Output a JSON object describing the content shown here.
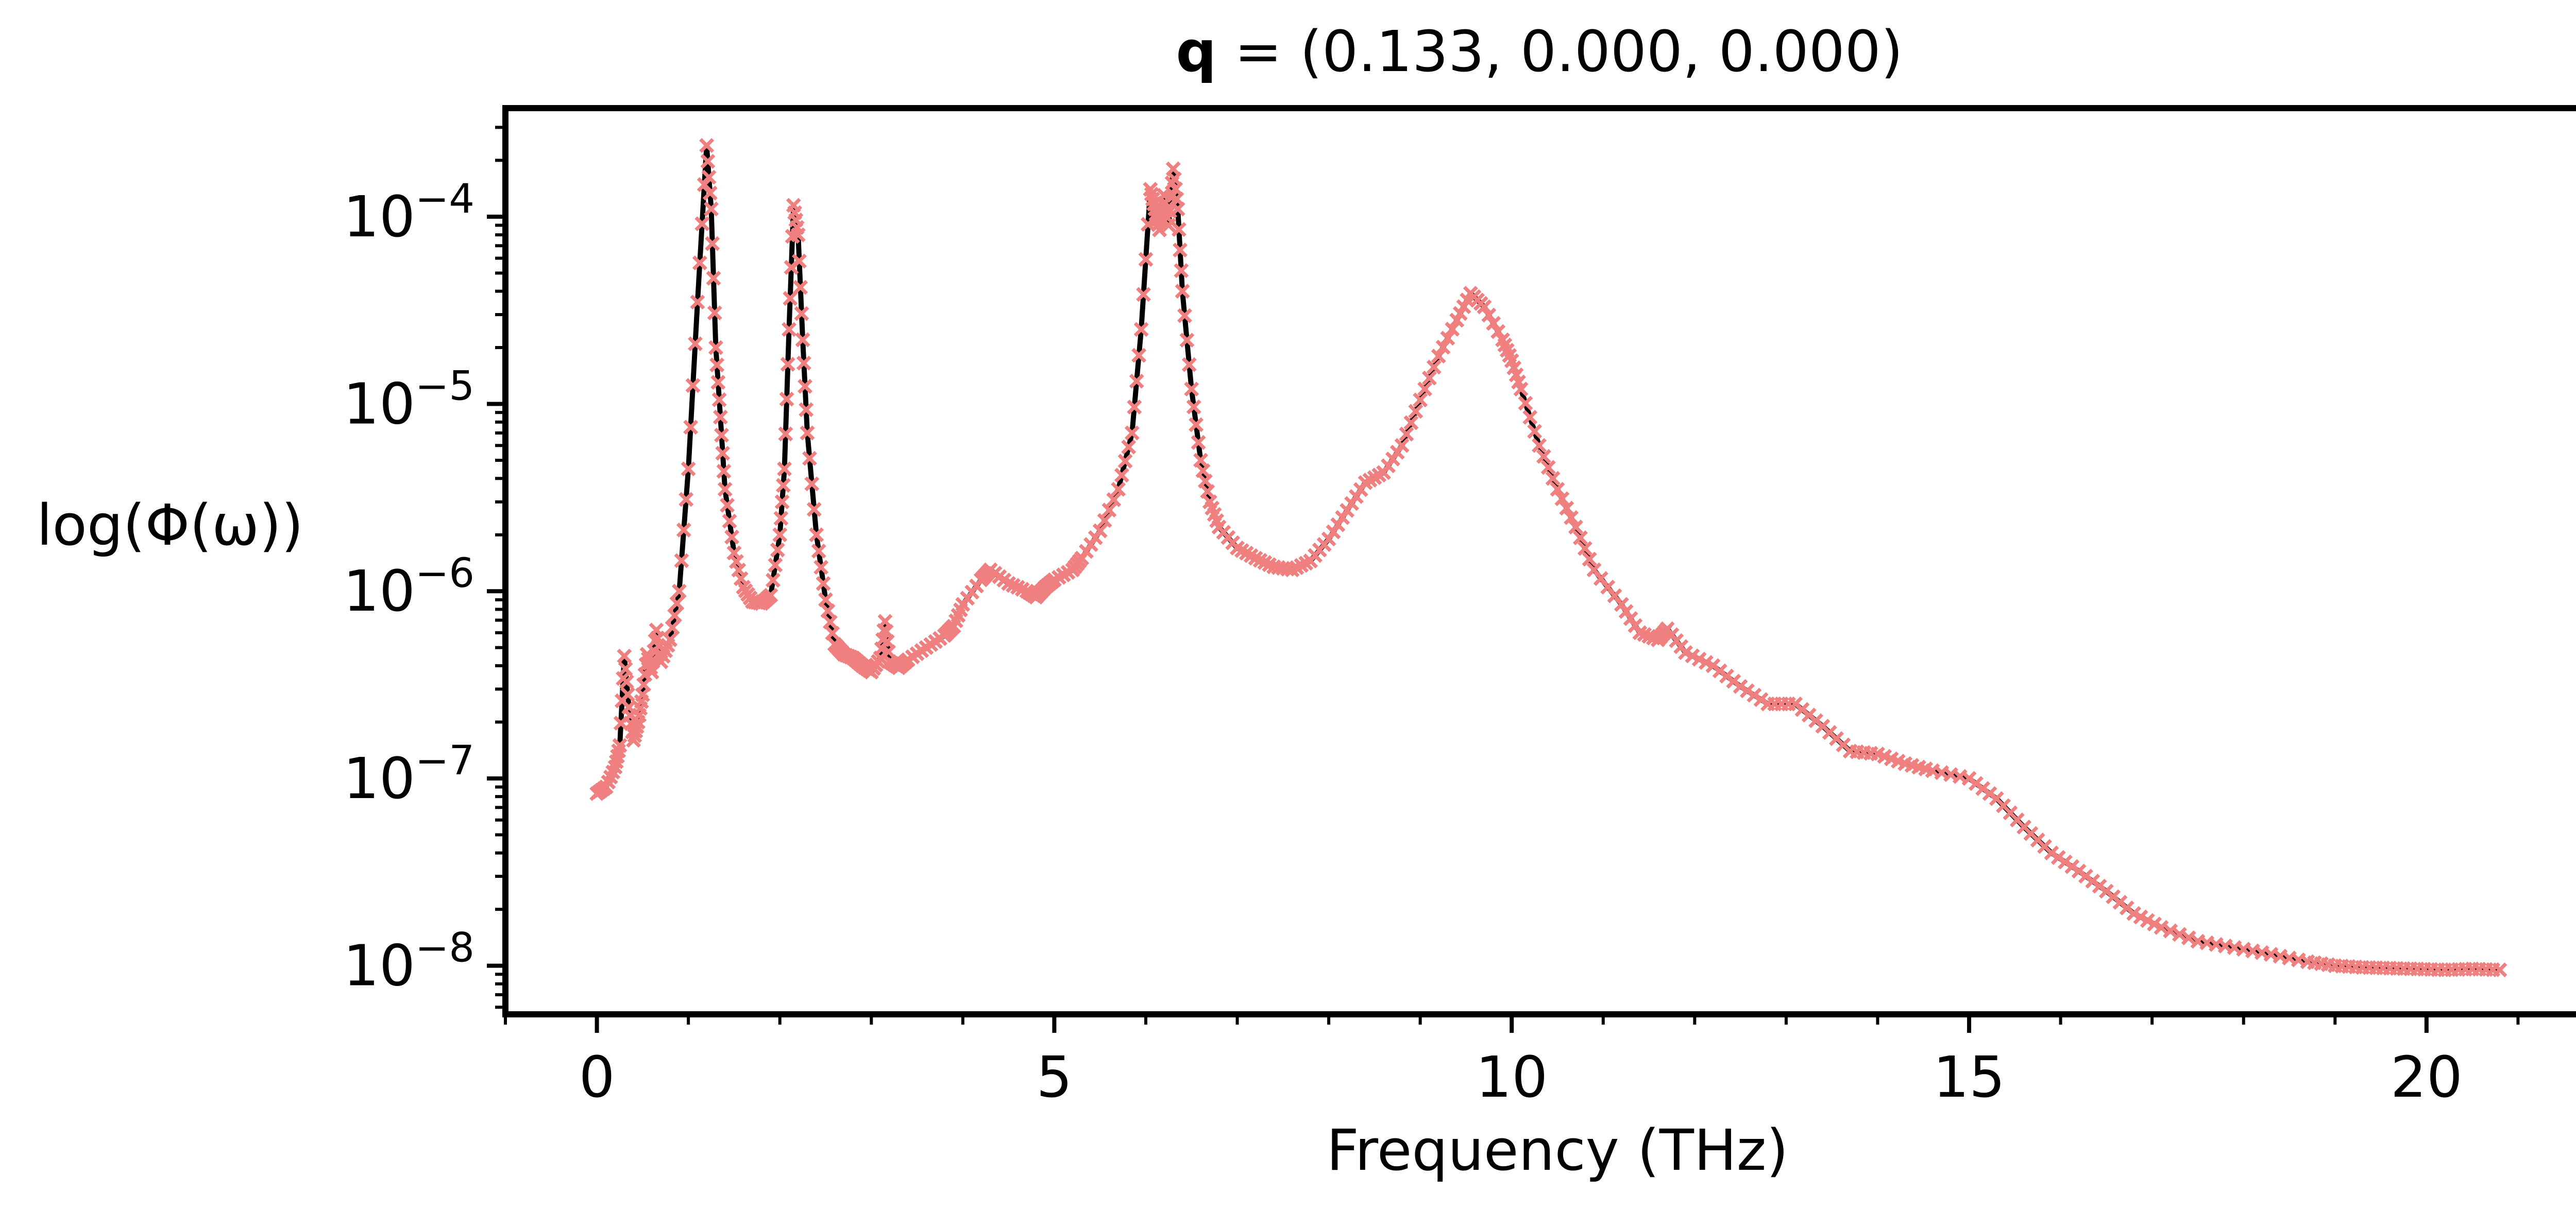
{
  "chart_data": {
    "type": "line",
    "title": {
      "bold_part": "q",
      "rest": " = (0.133, 0.000, 0.000)"
    },
    "xlabel": "Frequency (THz)",
    "ylabel": "log(Φ(ω))",
    "xlim": [
      -1.0,
      22.0
    ],
    "ylim": [
      5.5e-09,
      0.00038
    ],
    "yscale": "log",
    "grid": false,
    "legend": "none",
    "x_ticks": [
      {
        "value": 0,
        "label": "0"
      },
      {
        "value": 5,
        "label": "5"
      },
      {
        "value": 10,
        "label": "10"
      },
      {
        "value": 15,
        "label": "15"
      },
      {
        "value": 20,
        "label": "20"
      }
    ],
    "y_ticks": [
      {
        "value": 1e-08,
        "base": "10",
        "exp": "−8"
      },
      {
        "value": 1e-07,
        "base": "10",
        "exp": "−7"
      },
      {
        "value": 1e-06,
        "base": "10",
        "exp": "−6"
      },
      {
        "value": 1e-05,
        "base": "10",
        "exp": "−5"
      },
      {
        "value": 0.0001,
        "base": "10",
        "exp": "−4"
      }
    ],
    "line_color": "#000000",
    "marker_color": "#f08080",
    "marker": "x",
    "series": [
      {
        "points": [
          [
            0.0,
            8.3e-08
          ],
          [
            0.1,
            9e-08
          ],
          [
            0.2,
            1.15e-07
          ],
          [
            0.25,
            1.5e-07
          ],
          [
            0.3,
            4.5e-07
          ],
          [
            0.35,
            2.4e-07
          ],
          [
            0.4,
            1.6e-07
          ],
          [
            0.45,
            2e-07
          ],
          [
            0.5,
            2.8e-07
          ],
          [
            0.55,
            4.6e-07
          ],
          [
            0.6,
            3.7e-07
          ],
          [
            0.65,
            6.2e-07
          ],
          [
            0.7,
            4.2e-07
          ],
          [
            0.8,
            5.5e-07
          ],
          [
            0.9,
            1e-06
          ],
          [
            1.0,
            4.5e-06
          ],
          [
            1.1,
            3.5e-05
          ],
          [
            1.2,
            0.00024
          ],
          [
            1.25,
            0.00011
          ],
          [
            1.3,
            2e-05
          ],
          [
            1.35,
            8.5e-06
          ],
          [
            1.4,
            3.5e-06
          ],
          [
            1.5,
            1.6e-06
          ],
          [
            1.6,
            1.05e-06
          ],
          [
            1.7,
            8.8e-07
          ],
          [
            1.8,
            8.6e-07
          ],
          [
            1.9,
            9.5e-07
          ],
          [
            2.0,
            2e-06
          ],
          [
            2.05,
            4.5e-06
          ],
          [
            2.1,
            2.5e-05
          ],
          [
            2.15,
            0.000115
          ],
          [
            2.2,
            8e-05
          ],
          [
            2.25,
            2.2e-05
          ],
          [
            2.3,
            7e-06
          ],
          [
            2.4,
            2e-06
          ],
          [
            2.5,
            9e-07
          ],
          [
            2.6,
            5.2e-07
          ],
          [
            2.7,
            4.6e-07
          ],
          [
            2.8,
            4.4e-07
          ],
          [
            2.9,
            4e-07
          ],
          [
            3.0,
            3.7e-07
          ],
          [
            3.1,
            4.4e-07
          ],
          [
            3.15,
            6.9e-07
          ],
          [
            3.2,
            4.2e-07
          ],
          [
            3.3,
            3.9e-07
          ],
          [
            3.4,
            4.3e-07
          ],
          [
            3.6,
            5e-07
          ],
          [
            3.8,
            5.8e-07
          ],
          [
            3.9,
            6.5e-07
          ],
          [
            4.0,
            8.5e-07
          ],
          [
            4.2,
            1.15e-06
          ],
          [
            4.3,
            1.3e-06
          ],
          [
            4.5,
            1.1e-06
          ],
          [
            4.7,
            1e-06
          ],
          [
            4.8,
            9.3e-07
          ],
          [
            4.9,
            1.05e-06
          ],
          [
            5.0,
            1.15e-06
          ],
          [
            5.2,
            1.3e-06
          ],
          [
            5.3,
            1.5e-06
          ],
          [
            5.5,
            2.1e-06
          ],
          [
            5.7,
            3.5e-06
          ],
          [
            5.85,
            7e-06
          ],
          [
            5.95,
            2.5e-05
          ],
          [
            6.05,
            0.00014
          ],
          [
            6.1,
            0.00011
          ],
          [
            6.15,
            8.5e-05
          ],
          [
            6.2,
            0.00013
          ],
          [
            6.25,
            9e-05
          ],
          [
            6.3,
            0.00018
          ],
          [
            6.35,
            0.00011
          ],
          [
            6.4,
            4e-05
          ],
          [
            6.5,
            1.2e-05
          ],
          [
            6.6,
            5e-06
          ],
          [
            6.7,
            3e-06
          ],
          [
            6.8,
            2.2e-06
          ],
          [
            7.0,
            1.7e-06
          ],
          [
            7.2,
            1.5e-06
          ],
          [
            7.4,
            1.35e-06
          ],
          [
            7.6,
            1.3e-06
          ],
          [
            7.8,
            1.45e-06
          ],
          [
            8.0,
            1.9e-06
          ],
          [
            8.2,
            2.7e-06
          ],
          [
            8.4,
            3.8e-06
          ],
          [
            8.6,
            4.3e-06
          ],
          [
            8.8,
            6e-06
          ],
          [
            9.0,
            1.05e-05
          ],
          [
            9.2,
            1.8e-05
          ],
          [
            9.4,
            2.8e-05
          ],
          [
            9.55,
            3.9e-05
          ],
          [
            9.7,
            3.3e-05
          ],
          [
            9.9,
            2.2e-05
          ],
          [
            10.0,
            1.7e-05
          ],
          [
            10.1,
            1.2e-05
          ],
          [
            10.3,
            6e-06
          ],
          [
            10.5,
            3.5e-06
          ],
          [
            10.7,
            2.2e-06
          ],
          [
            10.9,
            1.3e-06
          ],
          [
            11.2,
            8.5e-07
          ],
          [
            11.4,
            6e-07
          ],
          [
            11.6,
            5.5e-07
          ],
          [
            11.7,
            6.3e-07
          ],
          [
            11.9,
            4.7e-07
          ],
          [
            12.2,
            4e-07
          ],
          [
            12.5,
            3.1e-07
          ],
          [
            12.8,
            2.5e-07
          ],
          [
            13.1,
            2.5e-07
          ],
          [
            13.4,
            1.9e-07
          ],
          [
            13.7,
            1.4e-07
          ],
          [
            14.0,
            1.35e-07
          ],
          [
            14.3,
            1.2e-07
          ],
          [
            14.6,
            1.1e-07
          ],
          [
            15.0,
            1e-07
          ],
          [
            15.3,
            7.8e-08
          ],
          [
            15.6,
            5.5e-08
          ],
          [
            15.9,
            4e-08
          ],
          [
            16.2,
            3.2e-08
          ],
          [
            16.5,
            2.5e-08
          ],
          [
            16.8,
            1.9e-08
          ],
          [
            17.1,
            1.6e-08
          ],
          [
            17.5,
            1.35e-08
          ],
          [
            17.9,
            1.25e-08
          ],
          [
            18.3,
            1.15e-08
          ],
          [
            18.7,
            1.05e-08
          ],
          [
            19.0,
            1e-08
          ],
          [
            19.3,
            9.8e-09
          ],
          [
            19.6,
            9.7e-09
          ],
          [
            19.9,
            9.6e-09
          ],
          [
            20.2,
            9.5e-09
          ],
          [
            20.5,
            9.6e-09
          ],
          [
            20.8,
            9.5e-09
          ]
        ]
      }
    ]
  }
}
